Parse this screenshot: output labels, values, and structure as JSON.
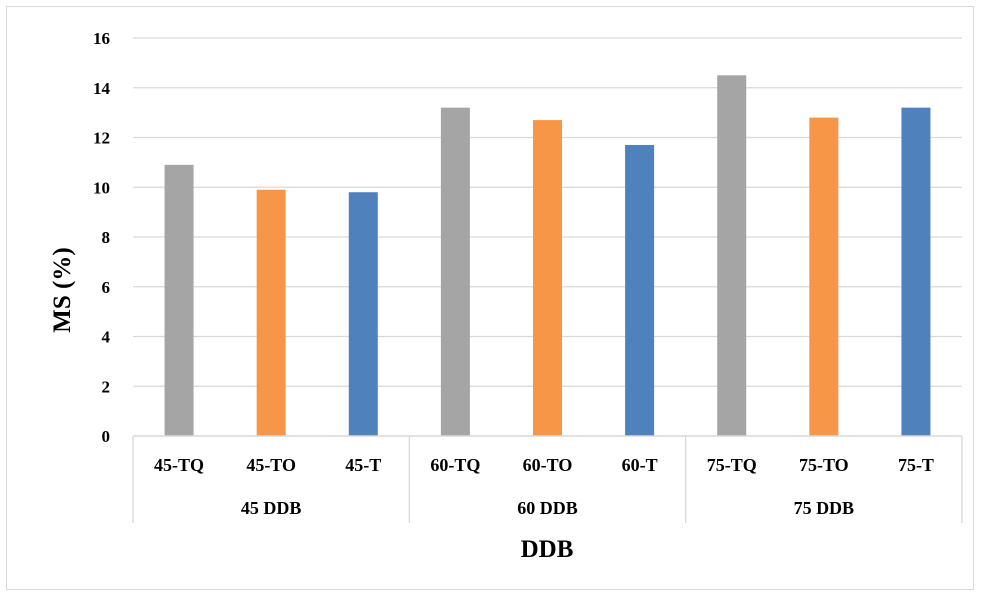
{
  "chart_data": {
    "type": "bar",
    "xlabel": "DDB",
    "ylabel": "MS (%)",
    "ylim": [
      0,
      16
    ],
    "yticks": [
      0,
      2,
      4,
      6,
      8,
      10,
      12,
      14,
      16
    ],
    "grid": true,
    "groups": [
      "45 DDB",
      "60 DDB",
      "75 DDB"
    ],
    "categories": [
      "45-TQ",
      "45-TO",
      "45-T",
      "60-TQ",
      "60-TO",
      "60-T",
      "75-TQ",
      "75-TO",
      "75-T"
    ],
    "values": [
      10.9,
      9.9,
      9.8,
      13.2,
      12.7,
      11.7,
      14.5,
      12.8,
      13.2
    ],
    "bar_colors": [
      "#a5a5a5",
      "#f79646",
      "#4f81bd",
      "#a5a5a5",
      "#f79646",
      "#4f81bd",
      "#a5a5a5",
      "#f79646",
      "#4f81bd"
    ]
  }
}
